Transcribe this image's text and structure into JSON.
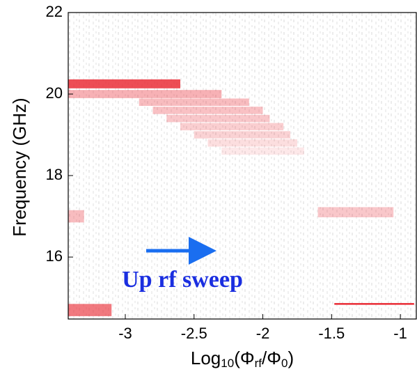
{
  "chart_data": {
    "type": "heatmap",
    "xlabel": [
      "Log",
      "10",
      "(Φ",
      "rf",
      "/Φ",
      "0",
      ")"
    ],
    "ylabel": "Frequency (GHz)",
    "annotation": "Up rf sweep",
    "xlim": [
      -3.415,
      -0.884
    ],
    "ylim": [
      14.48,
      22
    ],
    "xticks": [
      -3,
      -2.5,
      -2,
      -1.5,
      -1
    ],
    "yticks": [
      16,
      18,
      20,
      22
    ],
    "color": "#e8202a",
    "bands": [
      {
        "freq": 20.25,
        "x_start": -3.415,
        "x_end": -2.6,
        "thickness": 0.22,
        "intensity": 0.8
      },
      {
        "freq": 20.0,
        "x_start": -3.415,
        "x_end": -2.3,
        "thickness": 0.2,
        "intensity": 0.35
      },
      {
        "freq": 19.8,
        "x_start": -2.9,
        "x_end": -2.1,
        "thickness": 0.18,
        "intensity": 0.3
      },
      {
        "freq": 19.6,
        "x_start": -2.8,
        "x_end": -2.0,
        "thickness": 0.18,
        "intensity": 0.28
      },
      {
        "freq": 19.4,
        "x_start": -2.7,
        "x_end": -1.95,
        "thickness": 0.18,
        "intensity": 0.25
      },
      {
        "freq": 19.2,
        "x_start": -2.6,
        "x_end": -1.85,
        "thickness": 0.18,
        "intensity": 0.22
      },
      {
        "freq": 19.0,
        "x_start": -2.5,
        "x_end": -1.8,
        "thickness": 0.18,
        "intensity": 0.2
      },
      {
        "freq": 18.8,
        "x_start": -2.4,
        "x_end": -1.75,
        "thickness": 0.18,
        "intensity": 0.15
      },
      {
        "freq": 18.6,
        "x_start": -2.3,
        "x_end": -1.7,
        "thickness": 0.18,
        "intensity": 0.1
      },
      {
        "freq": 17.1,
        "x_start": -1.6,
        "x_end": -1.05,
        "thickness": 0.25,
        "intensity": 0.25
      },
      {
        "freq": 17.0,
        "x_start": -3.415,
        "x_end": -3.3,
        "thickness": 0.3,
        "intensity": 0.3
      },
      {
        "freq": 14.85,
        "x_start": -1.48,
        "x_end": -0.9,
        "thickness": 0.04,
        "intensity": 1
      },
      {
        "freq": 14.7,
        "x_start": -3.415,
        "x_end": -3.1,
        "thickness": 0.3,
        "intensity": 0.6
      }
    ]
  }
}
